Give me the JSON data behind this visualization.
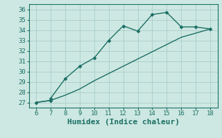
{
  "x_line1": [
    6,
    7,
    7,
    8,
    9,
    10,
    11,
    12,
    13,
    14,
    15,
    16,
    17,
    18
  ],
  "y_line1": [
    27.0,
    27.2,
    27.4,
    29.3,
    30.5,
    31.3,
    33.0,
    34.4,
    33.9,
    35.5,
    35.7,
    34.3,
    34.3,
    34.1
  ],
  "x_line2": [
    6,
    7,
    8,
    9,
    10,
    11,
    12,
    13,
    14,
    15,
    16,
    17,
    18
  ],
  "y_line2": [
    27.0,
    27.2,
    27.7,
    28.3,
    29.1,
    29.8,
    30.5,
    31.2,
    31.9,
    32.6,
    33.3,
    33.7,
    34.1
  ],
  "line_color": "#1a6e64",
  "bg_color": "#cde8e2",
  "grid_color": "#a8ccca",
  "xlabel": "Humidex (Indice chaleur)",
  "xlim": [
    5.5,
    18.5
  ],
  "ylim": [
    26.5,
    36.5
  ],
  "xticks": [
    6,
    7,
    8,
    9,
    10,
    11,
    12,
    13,
    14,
    15,
    16,
    17,
    18
  ],
  "yticks": [
    27,
    28,
    29,
    30,
    31,
    32,
    33,
    34,
    35,
    36
  ],
  "marker": "D",
  "markersize": 2.5,
  "linewidth": 1.0,
  "xlabel_fontsize": 8,
  "tick_fontsize": 6.5
}
